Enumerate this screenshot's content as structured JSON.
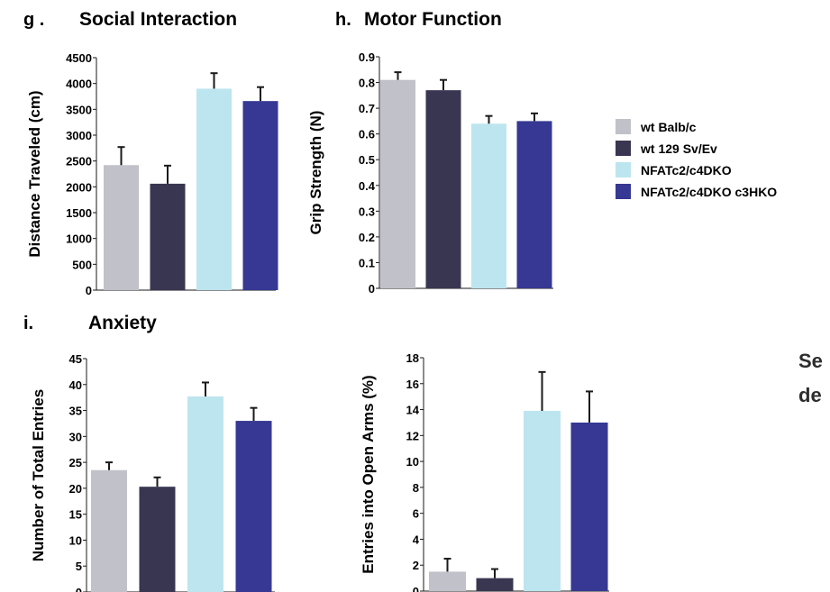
{
  "colors": {
    "wt_balb": "#c0c1c9",
    "wt_129": "#393652",
    "dko": "#bde5ef",
    "tko": "#363893",
    "axis": "#1a1a1a"
  },
  "legend": {
    "items": [
      {
        "label": "wt Balb/c",
        "color": "#c0c1c9"
      },
      {
        "label": "wt 129 Sv/Ev",
        "color": "#393652"
      },
      {
        "label": "NFATc2/c4DKO",
        "color": "#bde5ef"
      },
      {
        "label": "NFATc2/c4DKO c3HKO",
        "color": "#363893"
      }
    ]
  },
  "side_text": {
    "line1": "Se",
    "line2": "de"
  },
  "chart_data": [
    {
      "id": "social",
      "type": "bar",
      "panel_letter": "g .",
      "title": "Social Interaction",
      "ylabel": "Distance Traveled (cm)",
      "ylim": [
        0,
        4500
      ],
      "yticks": [
        0,
        500,
        1000,
        1500,
        2000,
        2500,
        3000,
        3500,
        4000,
        4500
      ],
      "ytick_labels": [
        "0",
        "500",
        "1000",
        "1500",
        "2000",
        "2500",
        "3000",
        "3500",
        "4000",
        "4500"
      ],
      "values": [
        2420,
        2060,
        3900,
        3660
      ],
      "errors": [
        350,
        350,
        300,
        270
      ]
    },
    {
      "id": "motor",
      "type": "bar",
      "panel_letter": "h.",
      "title": "Motor Function",
      "ylabel": "Grip Strength (N)",
      "ylim": [
        0,
        0.9
      ],
      "yticks": [
        0,
        0.1,
        0.2,
        0.3,
        0.4,
        0.5,
        0.6,
        0.7,
        0.8,
        0.9
      ],
      "ytick_labels": [
        "0",
        "0.1",
        "0.2",
        "0.3",
        "0.4",
        "0.5",
        "0.6",
        "0.7",
        "0.8",
        "0.9"
      ],
      "values": [
        0.81,
        0.77,
        0.64,
        0.65
      ],
      "errors": [
        0.03,
        0.04,
        0.03,
        0.03
      ]
    },
    {
      "id": "anxiety_total",
      "type": "bar",
      "panel_letter": "i.",
      "title": "Anxiety",
      "ylabel": "Number of Total Entries",
      "ylim": [
        0,
        45
      ],
      "yticks": [
        0,
        5,
        10,
        15,
        20,
        25,
        30,
        35,
        40,
        45
      ],
      "ytick_labels": [
        "0",
        "5",
        "10",
        "15",
        "20",
        "25",
        "30",
        "35",
        "40",
        "45"
      ],
      "values": [
        23.5,
        20.3,
        37.7,
        33.0
      ],
      "errors": [
        1.5,
        1.8,
        2.7,
        2.5
      ]
    },
    {
      "id": "anxiety_open",
      "type": "bar",
      "panel_letter": "",
      "title": "",
      "ylabel": "Entries into Open Arms (%)",
      "ylim": [
        0,
        18
      ],
      "yticks": [
        0,
        2,
        4,
        6,
        8,
        10,
        12,
        14,
        16,
        18
      ],
      "ytick_labels": [
        "0",
        "2",
        "4",
        "6",
        "8",
        "10",
        "12",
        "14",
        "16",
        "18"
      ],
      "values": [
        1.5,
        1.0,
        13.9,
        13.0
      ],
      "errors": [
        1.0,
        0.7,
        3.0,
        2.4
      ]
    }
  ]
}
